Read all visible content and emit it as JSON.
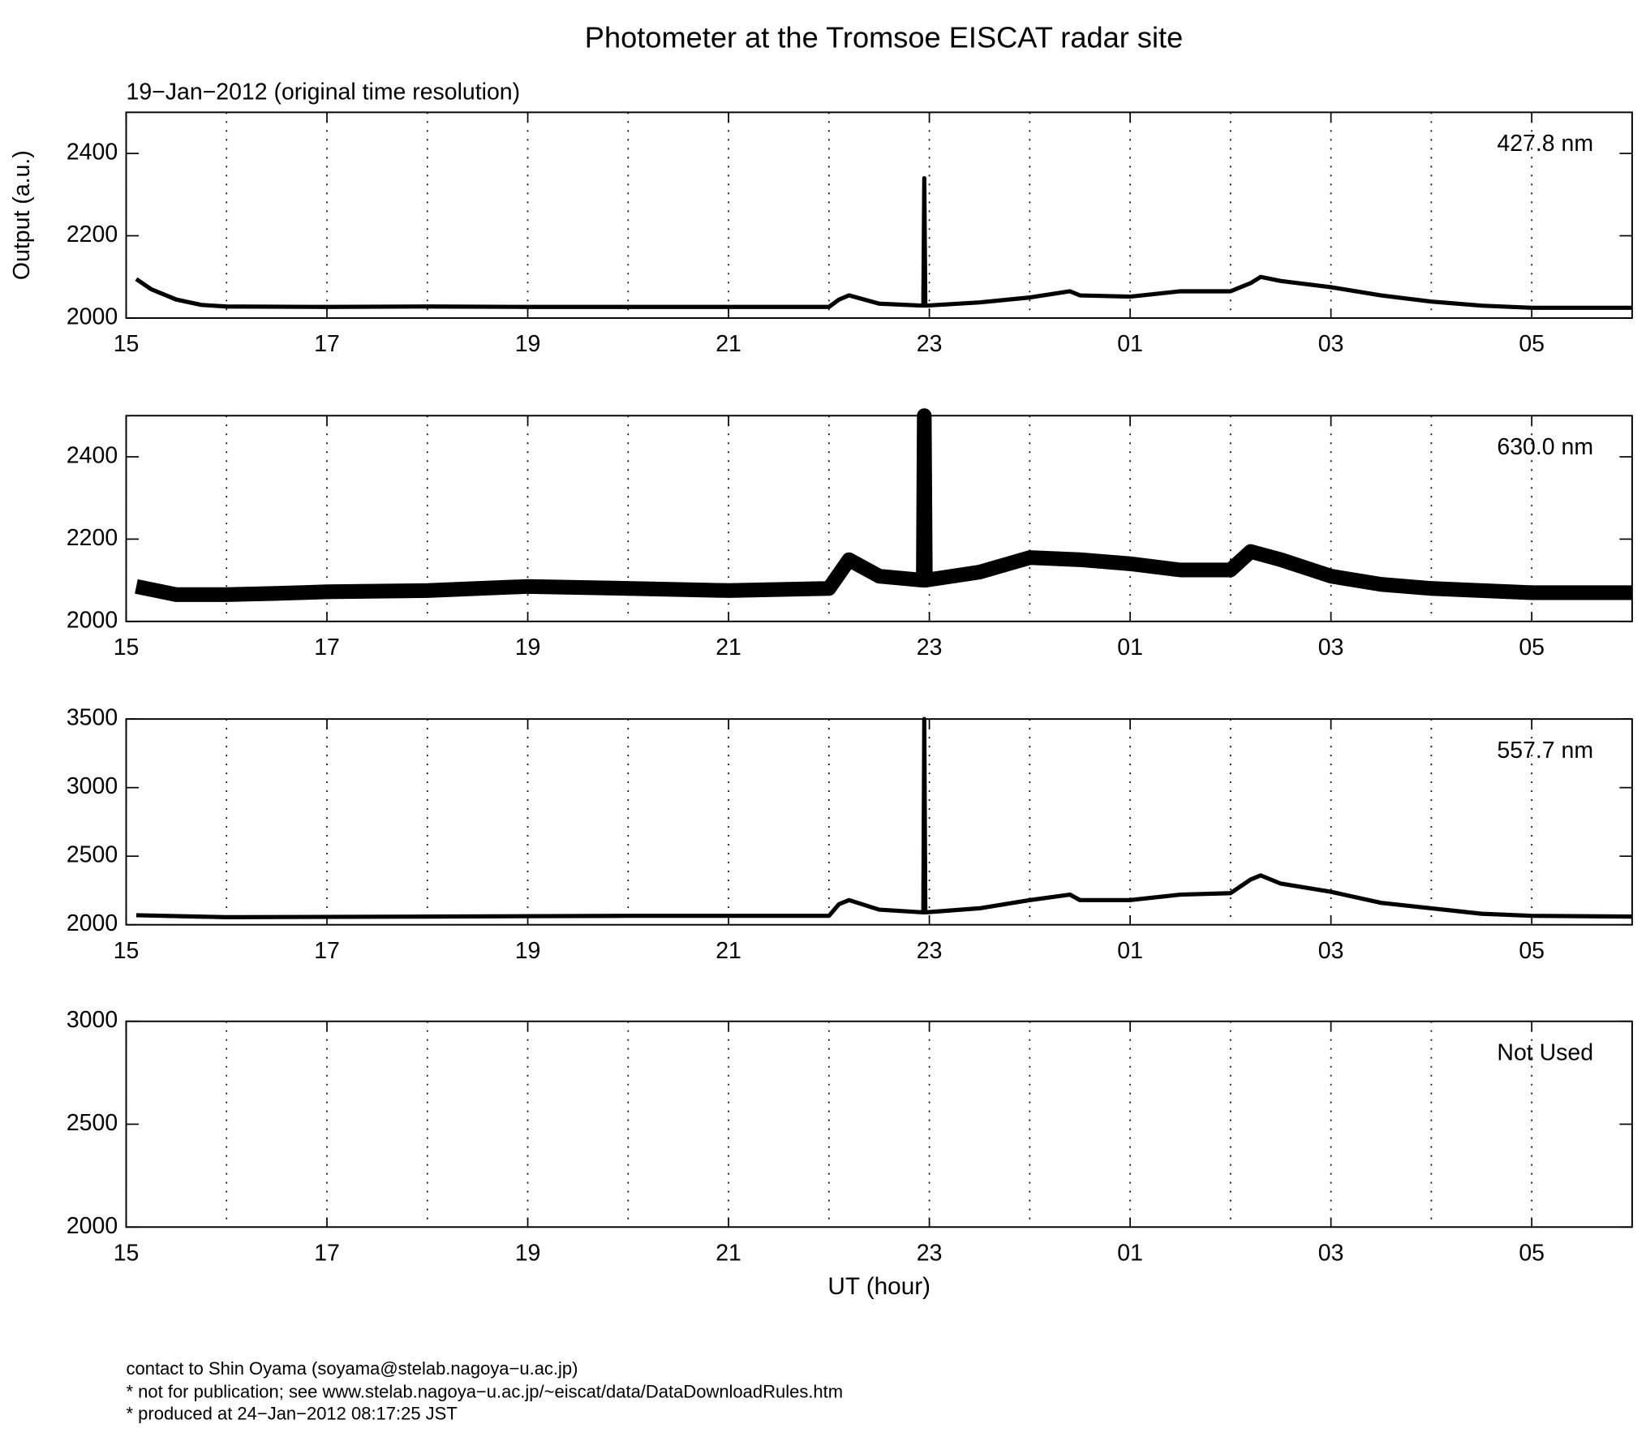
{
  "title": "Photometer at the Tromsoe EISCAT radar site",
  "subtitle": "19−Jan−2012 (original time resolution)",
  "footer": [
    "contact to Shin Oyama (soyama@stelab.nagoya−u.ac.jp)",
    "* not for publication; see www.stelab.nagoya−u.ac.jp/~eiscat/data/DataDownloadRules.htm",
    "* produced at 24−Jan−2012 08:17:25 JST"
  ],
  "chart_data": [
    {
      "type": "line",
      "label": "427.8 nm",
      "ylabel": "Output (a.u.)",
      "color": "#000000",
      "x": [
        15.1,
        15.25,
        15.5,
        15.75,
        16,
        17,
        18,
        19,
        20,
        21,
        22,
        22.1,
        22.2,
        22.5,
        22.94,
        22.95,
        22.96,
        23.5,
        24,
        24.4,
        24.5,
        25,
        25.5,
        26,
        26.2,
        26.3,
        26.5,
        27,
        27.5,
        28,
        28.5,
        29,
        30
      ],
      "values": [
        2095,
        2070,
        2045,
        2032,
        2028,
        2027,
        2028,
        2027,
        2027,
        2027,
        2027,
        2045,
        2055,
        2035,
        2030,
        2340,
        2030,
        2038,
        2050,
        2065,
        2055,
        2052,
        2065,
        2065,
        2085,
        2100,
        2090,
        2075,
        2055,
        2040,
        2030,
        2025,
        2025
      ],
      "xlim": [
        15,
        30
      ],
      "xticks": [
        15,
        17,
        19,
        21,
        23,
        {
          "value": 25,
          "label": "01"
        },
        {
          "value": 27,
          "label": "03"
        },
        {
          "value": 29,
          "label": "05"
        }
      ],
      "xminor": [
        16,
        18,
        20,
        22,
        24,
        26,
        28
      ],
      "ylim": [
        2000,
        2500
      ],
      "yticks": [
        2000,
        2200,
        2400
      ]
    },
    {
      "type": "line",
      "label": "630.0 nm",
      "color": "#000000",
      "x": [
        15.1,
        15.5,
        16,
        16.5,
        17,
        18,
        19,
        20,
        21,
        22,
        22.2,
        22.5,
        22.94,
        22.95,
        22.96,
        23.5,
        24,
        24.5,
        25,
        25.5,
        26,
        26.2,
        26.5,
        27,
        27.5,
        28,
        29,
        30
      ],
      "values": [
        2085,
        2065,
        2065,
        2068,
        2072,
        2075,
        2085,
        2080,
        2075,
        2080,
        2150,
        2110,
        2100,
        2500,
        2100,
        2120,
        2155,
        2150,
        2140,
        2125,
        2125,
        2170,
        2150,
        2110,
        2090,
        2080,
        2070,
        2070
      ],
      "xlim": [
        15,
        30
      ],
      "xticks": [
        15,
        17,
        19,
        21,
        23,
        {
          "value": 25,
          "label": "01"
        },
        {
          "value": 27,
          "label": "03"
        },
        {
          "value": 29,
          "label": "05"
        }
      ],
      "xminor": [
        16,
        18,
        20,
        22,
        24,
        26,
        28
      ],
      "ylim": [
        2000,
        2500
      ],
      "yticks": [
        2000,
        2200,
        2400
      ]
    },
    {
      "type": "line",
      "label": "557.7 nm",
      "color": "#000000",
      "x": [
        15.1,
        16,
        18,
        20,
        22,
        22.1,
        22.2,
        22.5,
        22.94,
        22.95,
        22.96,
        23.5,
        24,
        24.4,
        24.5,
        25,
        25.5,
        26,
        26.2,
        26.3,
        26.5,
        27,
        27.5,
        28,
        28.5,
        29,
        30
      ],
      "values": [
        2070,
        2055,
        2060,
        2065,
        2065,
        2150,
        2180,
        2110,
        2090,
        3500,
        2090,
        2120,
        2180,
        2220,
        2180,
        2180,
        2220,
        2230,
        2330,
        2360,
        2300,
        2240,
        2160,
        2120,
        2080,
        2065,
        2060
      ],
      "xlim": [
        15,
        30
      ],
      "xticks": [
        15,
        17,
        19,
        21,
        23,
        {
          "value": 25,
          "label": "01"
        },
        {
          "value": 27,
          "label": "03"
        },
        {
          "value": 29,
          "label": "05"
        }
      ],
      "xminor": [
        16,
        18,
        20,
        22,
        24,
        26,
        28
      ],
      "ylim": [
        2000,
        3500
      ],
      "yticks": [
        2000,
        2500,
        3000,
        3500
      ]
    },
    {
      "type": "line",
      "label": "Not Used",
      "xlabel": "UT (hour)",
      "color": "#000000",
      "x": [],
      "values": [],
      "xlim": [
        15,
        30
      ],
      "xticks": [
        15,
        17,
        19,
        21,
        23,
        {
          "value": 25,
          "label": "01"
        },
        {
          "value": 27,
          "label": "03"
        },
        {
          "value": 29,
          "label": "05"
        }
      ],
      "xminor": [
        16,
        18,
        20,
        22,
        24,
        26,
        28
      ],
      "ylim": [
        2000,
        3000
      ],
      "yticks": [
        2000,
        2500,
        3000
      ]
    }
  ]
}
